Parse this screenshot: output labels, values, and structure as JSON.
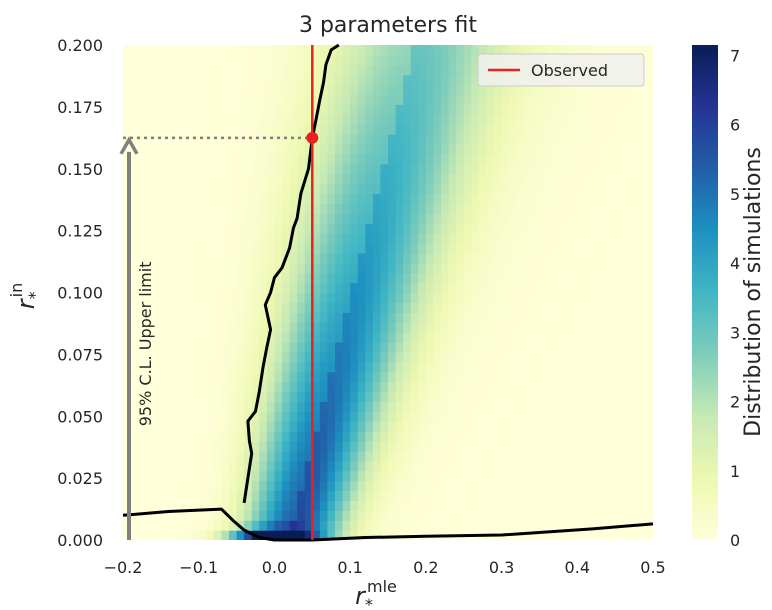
{
  "chart_data": {
    "type": "heatmap",
    "title": "3 parameters fit",
    "xlabel": {
      "base": "r",
      "sub": "*",
      "sup": "mle"
    },
    "ylabel": {
      "base": "r",
      "sub": "*",
      "sup": "in"
    },
    "xlim": [
      -0.2,
      0.5
    ],
    "ylim": [
      0.0,
      0.2
    ],
    "x_ticks": [
      -0.2,
      -0.1,
      0.0,
      0.1,
      0.2,
      0.3,
      0.4,
      0.5
    ],
    "x_tick_labels": [
      "−0.2",
      "−0.1",
      "0.0",
      "0.1",
      "0.2",
      "0.3",
      "0.4",
      "0.5"
    ],
    "y_ticks": [
      0.0,
      0.025,
      0.05,
      0.075,
      0.1,
      0.125,
      0.15,
      0.175,
      0.2
    ],
    "y_tick_labels": [
      "0.000",
      "0.025",
      "0.050",
      "0.075",
      "0.100",
      "0.125",
      "0.150",
      "0.175",
      "0.200"
    ],
    "colorbar": {
      "label": "Distribution of simulations",
      "range": [
        0,
        7.15
      ],
      "ticks": [
        0,
        1,
        2,
        3,
        4,
        5,
        6,
        7
      ],
      "tick_labels": [
        "0",
        "1",
        "2",
        "3",
        "4",
        "5",
        "6",
        "7"
      ],
      "colormap": "YlGnBu"
    },
    "observed": {
      "name": "Observed",
      "x": 0.05,
      "color": "#e8231e"
    },
    "upper_limit": {
      "x": 0.05,
      "y": 0.1625,
      "label": "95% C.L. Upper limit",
      "arrow_color": "#808080"
    },
    "lower_contour": [
      [
        -0.2,
        0.01
      ],
      [
        -0.14,
        0.0115
      ],
      [
        -0.07,
        0.0125
      ],
      [
        -0.055,
        0.008
      ],
      [
        -0.04,
        0.004
      ],
      [
        -0.02,
        0.001
      ],
      [
        0.0,
        0.0
      ],
      [
        0.05,
        0.0
      ],
      [
        0.12,
        0.001
      ],
      [
        0.2,
        0.0015
      ],
      [
        0.3,
        0.002
      ],
      [
        0.42,
        0.0045
      ],
      [
        0.5,
        0.0065
      ]
    ],
    "upper_contour": [
      [
        -0.04,
        0.015
      ],
      [
        -0.035,
        0.025
      ],
      [
        -0.03,
        0.035
      ],
      [
        -0.033,
        0.04
      ],
      [
        -0.035,
        0.048
      ],
      [
        -0.025,
        0.052
      ],
      [
        -0.02,
        0.06
      ],
      [
        -0.015,
        0.07
      ],
      [
        -0.01,
        0.078
      ],
      [
        -0.005,
        0.085
      ],
      [
        -0.012,
        0.095
      ],
      [
        -0.005,
        0.1
      ],
      [
        0.0,
        0.106
      ],
      [
        0.01,
        0.11
      ],
      [
        0.02,
        0.118
      ],
      [
        0.025,
        0.126
      ],
      [
        0.03,
        0.13
      ],
      [
        0.035,
        0.14
      ],
      [
        0.045,
        0.15
      ],
      [
        0.05,
        0.1625
      ],
      [
        0.055,
        0.17
      ],
      [
        0.06,
        0.178
      ],
      [
        0.065,
        0.185
      ],
      [
        0.068,
        0.192
      ],
      [
        0.075,
        0.198
      ],
      [
        0.085,
        0.2
      ]
    ],
    "legend": {
      "entries": [
        "Observed"
      ],
      "position": "top-right"
    },
    "grid": false
  }
}
